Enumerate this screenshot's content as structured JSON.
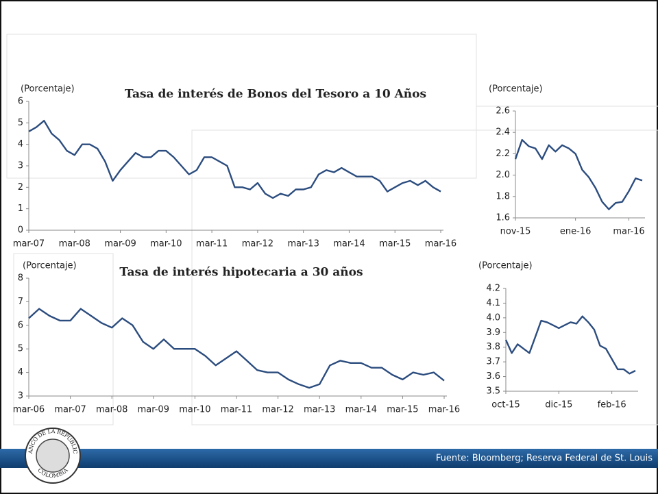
{
  "chart_data": [
    {
      "type": "line",
      "title": "Tasa de interés de Bonos del Tesoro a 10 Años",
      "y_label": "(Porcentaje)",
      "color": "#2b4c7e",
      "categories": [
        "mar-07",
        null,
        null,
        null,
        null,
        null,
        "mar-08",
        null,
        null,
        null,
        null,
        null,
        "mar-09",
        null,
        null,
        null,
        null,
        null,
        "mar-10",
        null,
        null,
        null,
        null,
        null,
        "mar-11",
        null,
        null,
        null,
        null,
        null,
        "mar-12",
        null,
        null,
        null,
        null,
        null,
        "mar-13",
        null,
        null,
        null,
        null,
        null,
        "mar-14",
        null,
        null,
        null,
        null,
        null,
        "mar-15",
        null,
        null,
        null,
        null,
        null,
        "mar-16"
      ],
      "values": [
        4.6,
        4.8,
        5.1,
        4.5,
        4.2,
        3.7,
        3.5,
        4.0,
        4.0,
        3.8,
        3.2,
        2.3,
        2.8,
        3.2,
        3.6,
        3.4,
        3.4,
        3.7,
        3.7,
        3.4,
        3.0,
        2.6,
        2.8,
        3.4,
        3.4,
        3.2,
        3.0,
        2.0,
        2.0,
        1.9,
        2.2,
        1.7,
        1.5,
        1.7,
        1.6,
        1.9,
        1.9,
        2.0,
        2.6,
        2.8,
        2.7,
        2.9,
        2.7,
        2.5,
        2.5,
        2.5,
        2.3,
        1.8,
        2.0,
        2.2,
        2.3,
        2.1,
        2.3,
        2.0,
        1.8
      ],
      "ylim": [
        0,
        6
      ],
      "yticks": [
        0,
        1,
        2,
        3,
        4,
        5,
        6
      ]
    },
    {
      "type": "line",
      "y_label": "(Porcentaje)",
      "color": "#2b4c7e",
      "categories": [
        "nov-15",
        null,
        null,
        null,
        null,
        null,
        null,
        null,
        null,
        "ene-16",
        null,
        null,
        null,
        null,
        null,
        null,
        null,
        "mar-16",
        null,
        null
      ],
      "values": [
        2.15,
        2.33,
        2.27,
        2.25,
        2.15,
        2.28,
        2.22,
        2.28,
        2.25,
        2.2,
        2.05,
        1.98,
        1.88,
        1.75,
        1.68,
        1.74,
        1.75,
        1.85,
        1.97,
        1.95
      ],
      "ylim": [
        1.6,
        2.6
      ],
      "yticks": [
        1.6,
        1.8,
        {
          "value": 2,
          "label": "2.0"
        },
        2.2,
        2.4,
        2.6
      ]
    },
    {
      "type": "line",
      "title": "Tasa de interés hipotecaria a 30 años",
      "y_label": "(Porcentaje)",
      "color": "#2b4c7e",
      "categories": [
        "mar-06",
        null,
        null,
        null,
        "mar-07",
        null,
        null,
        null,
        "mar-08",
        null,
        null,
        null,
        "mar-09",
        null,
        null,
        null,
        "mar-10",
        null,
        null,
        null,
        "mar-11",
        null,
        null,
        null,
        "mar-12",
        null,
        null,
        null,
        "mar-13",
        null,
        null,
        null,
        "mar-14",
        null,
        null,
        null,
        "mar-15",
        null,
        null,
        null,
        "mar-16"
      ],
      "values": [
        6.3,
        6.7,
        6.4,
        6.2,
        6.2,
        6.7,
        6.4,
        6.1,
        5.9,
        6.3,
        6.0,
        5.3,
        5.0,
        5.4,
        5.0,
        5.0,
        5.0,
        4.7,
        4.3,
        4.6,
        4.9,
        4.5,
        4.1,
        4.0,
        4.0,
        3.7,
        3.5,
        3.35,
        3.5,
        4.3,
        4.5,
        4.4,
        4.4,
        4.2,
        4.2,
        3.9,
        3.7,
        4.0,
        3.9,
        4.0,
        3.65
      ],
      "ylim": [
        3,
        8
      ],
      "yticks": [
        3,
        4,
        5,
        6,
        7,
        8
      ]
    },
    {
      "type": "line",
      "y_label": "(Porcentaje)",
      "color": "#2b4c7e",
      "categories": [
        "oct-15",
        null,
        null,
        null,
        null,
        null,
        null,
        null,
        null,
        "dic-15",
        null,
        null,
        null,
        null,
        null,
        null,
        null,
        null,
        "feb-16",
        null,
        null,
        null,
        null
      ],
      "values": [
        3.85,
        3.76,
        3.82,
        3.79,
        3.76,
        3.87,
        3.98,
        3.97,
        3.95,
        3.93,
        3.95,
        3.97,
        3.96,
        4.01,
        3.97,
        3.92,
        3.81,
        3.79,
        3.72,
        3.65,
        3.65,
        3.62,
        3.64
      ],
      "ylim": [
        3.5,
        4.2
      ],
      "yticks": [
        3.5,
        3.6,
        3.7,
        3.8,
        3.9,
        {
          "value": 4,
          "label": "4.0"
        },
        4.1,
        4.2
      ]
    }
  ],
  "footer": {
    "source": "Fuente: Bloomberg; Reserva Federal de St. Louis"
  },
  "logo": {
    "top": "BANCO DE LA REPUBLICA",
    "bottom": "COLOMBIA"
  }
}
